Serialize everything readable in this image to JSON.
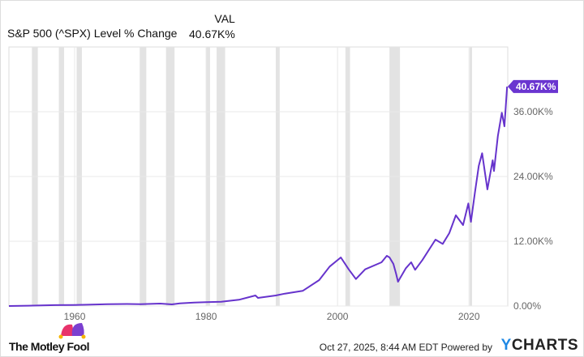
{
  "legend": {
    "column_header": "VAL",
    "series_name": "S&P 500 (^SPX) Level % Change",
    "series_value": "40.67K%"
  },
  "colors": {
    "line": "#6633cc",
    "badge": "#6a35d0",
    "recession": "#e3e3e3",
    "grid": "#e8e8e8"
  },
  "chart_data": {
    "type": "line",
    "xlabel": "",
    "ylabel": "",
    "xlim": [
      1950,
      2025.9
    ],
    "ylim": [
      0,
      48000
    ],
    "x_ticks": [
      1960,
      1980,
      2000,
      2020
    ],
    "x_tick_labels": [
      "1960",
      "1980",
      "2000",
      "2020"
    ],
    "y_ticks": [
      0,
      12000,
      24000,
      36000
    ],
    "y_tick_labels": [
      "0.00%",
      "12.00K%",
      "24.00K%",
      "36.00K%"
    ],
    "grid": true,
    "last_value_label": "40.67K%",
    "shaded_periods": [
      [
        1953.5,
        1954.4
      ],
      [
        1957.6,
        1958.4
      ],
      [
        1960.3,
        1961.1
      ],
      [
        1969.9,
        1970.9
      ],
      [
        1973.9,
        1975.2
      ],
      [
        1980.0,
        1980.6
      ],
      [
        1981.6,
        1982.9
      ],
      [
        1990.6,
        1991.2
      ],
      [
        2001.2,
        2001.9
      ],
      [
        2007.9,
        2009.5
      ],
      [
        2020.1,
        2020.4
      ]
    ],
    "series": [
      {
        "x": [
          1950,
          1953,
          1955,
          1957,
          1960,
          1962,
          1965,
          1968,
          1970,
          1972,
          1973,
          1974.8,
          1976,
          1978.2,
          1980,
          1982.3,
          1985,
          1987.5,
          1987.9,
          1990.6,
          1992,
          1994.7,
          1997.2,
          1998.8,
          2000.5,
          2001.7,
          2002.8,
          2004.2,
          2006.7,
          2007.5,
          2007.9,
          2008.5,
          2008.9,
          2009.2,
          2010.4,
          2011.2,
          2011.8,
          2012.9,
          2014.9,
          2016,
          2017,
          2018,
          2019.1,
          2019.9,
          2020.3,
          2020.9,
          2021.5,
          2022,
          2022.8,
          2023.6,
          2023.8,
          2024.4,
          2025,
          2025.4,
          2025.8
        ],
        "y": [
          0,
          60,
          120,
          160,
          200,
          240,
          350,
          380,
          350,
          420,
          450,
          300,
          480,
          650,
          720,
          800,
          1150,
          1950,
          1500,
          1950,
          2300,
          2800,
          4800,
          7300,
          9000,
          6800,
          5000,
          6800,
          8100,
          9300,
          9000,
          7800,
          6000,
          4500,
          7000,
          8100,
          6700,
          8500,
          12300,
          11500,
          13500,
          16800,
          15000,
          19000,
          15600,
          21000,
          26000,
          28300,
          21600,
          27000,
          25000,
          31500,
          35800,
          33300,
          40670
        ]
      }
    ]
  },
  "footer": {
    "brand": "The Motley Fool",
    "timestamp": "Oct 27, 2025, 8:44 AM EDT",
    "powered_by": "Powered by",
    "ycharts_y": "Y",
    "ycharts_rest": "CHARTS"
  }
}
